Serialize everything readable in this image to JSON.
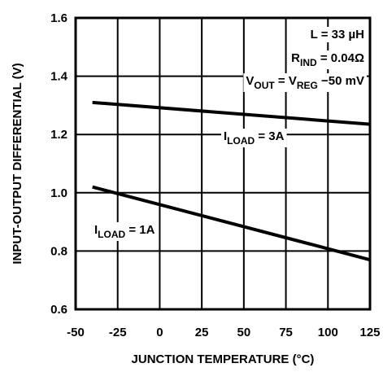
{
  "chart_data": {
    "type": "line",
    "x_label": "JUNCTION TEMPERATURE (°C)",
    "y_label": "INPUT-OUTPUT DIFFERENTIAL (V)",
    "xlim": [
      -50,
      125
    ],
    "xticks": [
      -50,
      -25,
      0,
      25,
      50,
      75,
      100,
      125
    ],
    "ylim": [
      0.6,
      1.6
    ],
    "yticks": [
      {
        "value": 0.6,
        "label": "0.6"
      },
      {
        "value": 0.8,
        "label": "0.8"
      },
      {
        "value": 1.0,
        "label": "1.0"
      },
      {
        "value": 1.2,
        "label": "1.2"
      },
      {
        "value": 1.4,
        "label": "1.4"
      },
      {
        "value": 1.6,
        "label": "1.6"
      }
    ],
    "grid": true,
    "series": [
      {
        "color": "#000000",
        "x": [
          -40,
          125
        ],
        "values": [
          1.31,
          1.235
        ]
      },
      {
        "color": "#000000",
        "x": [
          -40,
          125
        ],
        "values": [
          1.02,
          0.77
        ]
      }
    ],
    "annotations": [
      {
        "parts": [
          {
            "text": "L = 33 µH"
          }
        ]
      },
      {
        "parts": [
          {
            "text": "R"
          },
          {
            "text": "IND",
            "sub": true
          },
          {
            "text": " = 0.04Ω"
          }
        ]
      },
      {
        "parts": [
          {
            "text": "V"
          },
          {
            "text": "OUT",
            "sub": true
          },
          {
            "text": " = V"
          },
          {
            "text": "REG",
            "sub": true
          },
          {
            "text": " −50 mV"
          }
        ]
      },
      {
        "parts": [
          {
            "text": "I"
          },
          {
            "text": "LOAD",
            "sub": true
          },
          {
            "text": " = 3A"
          }
        ]
      },
      {
        "parts": [
          {
            "text": "I"
          },
          {
            "text": "LOAD",
            "sub": true
          },
          {
            "text": " = 1A"
          }
        ]
      }
    ]
  }
}
